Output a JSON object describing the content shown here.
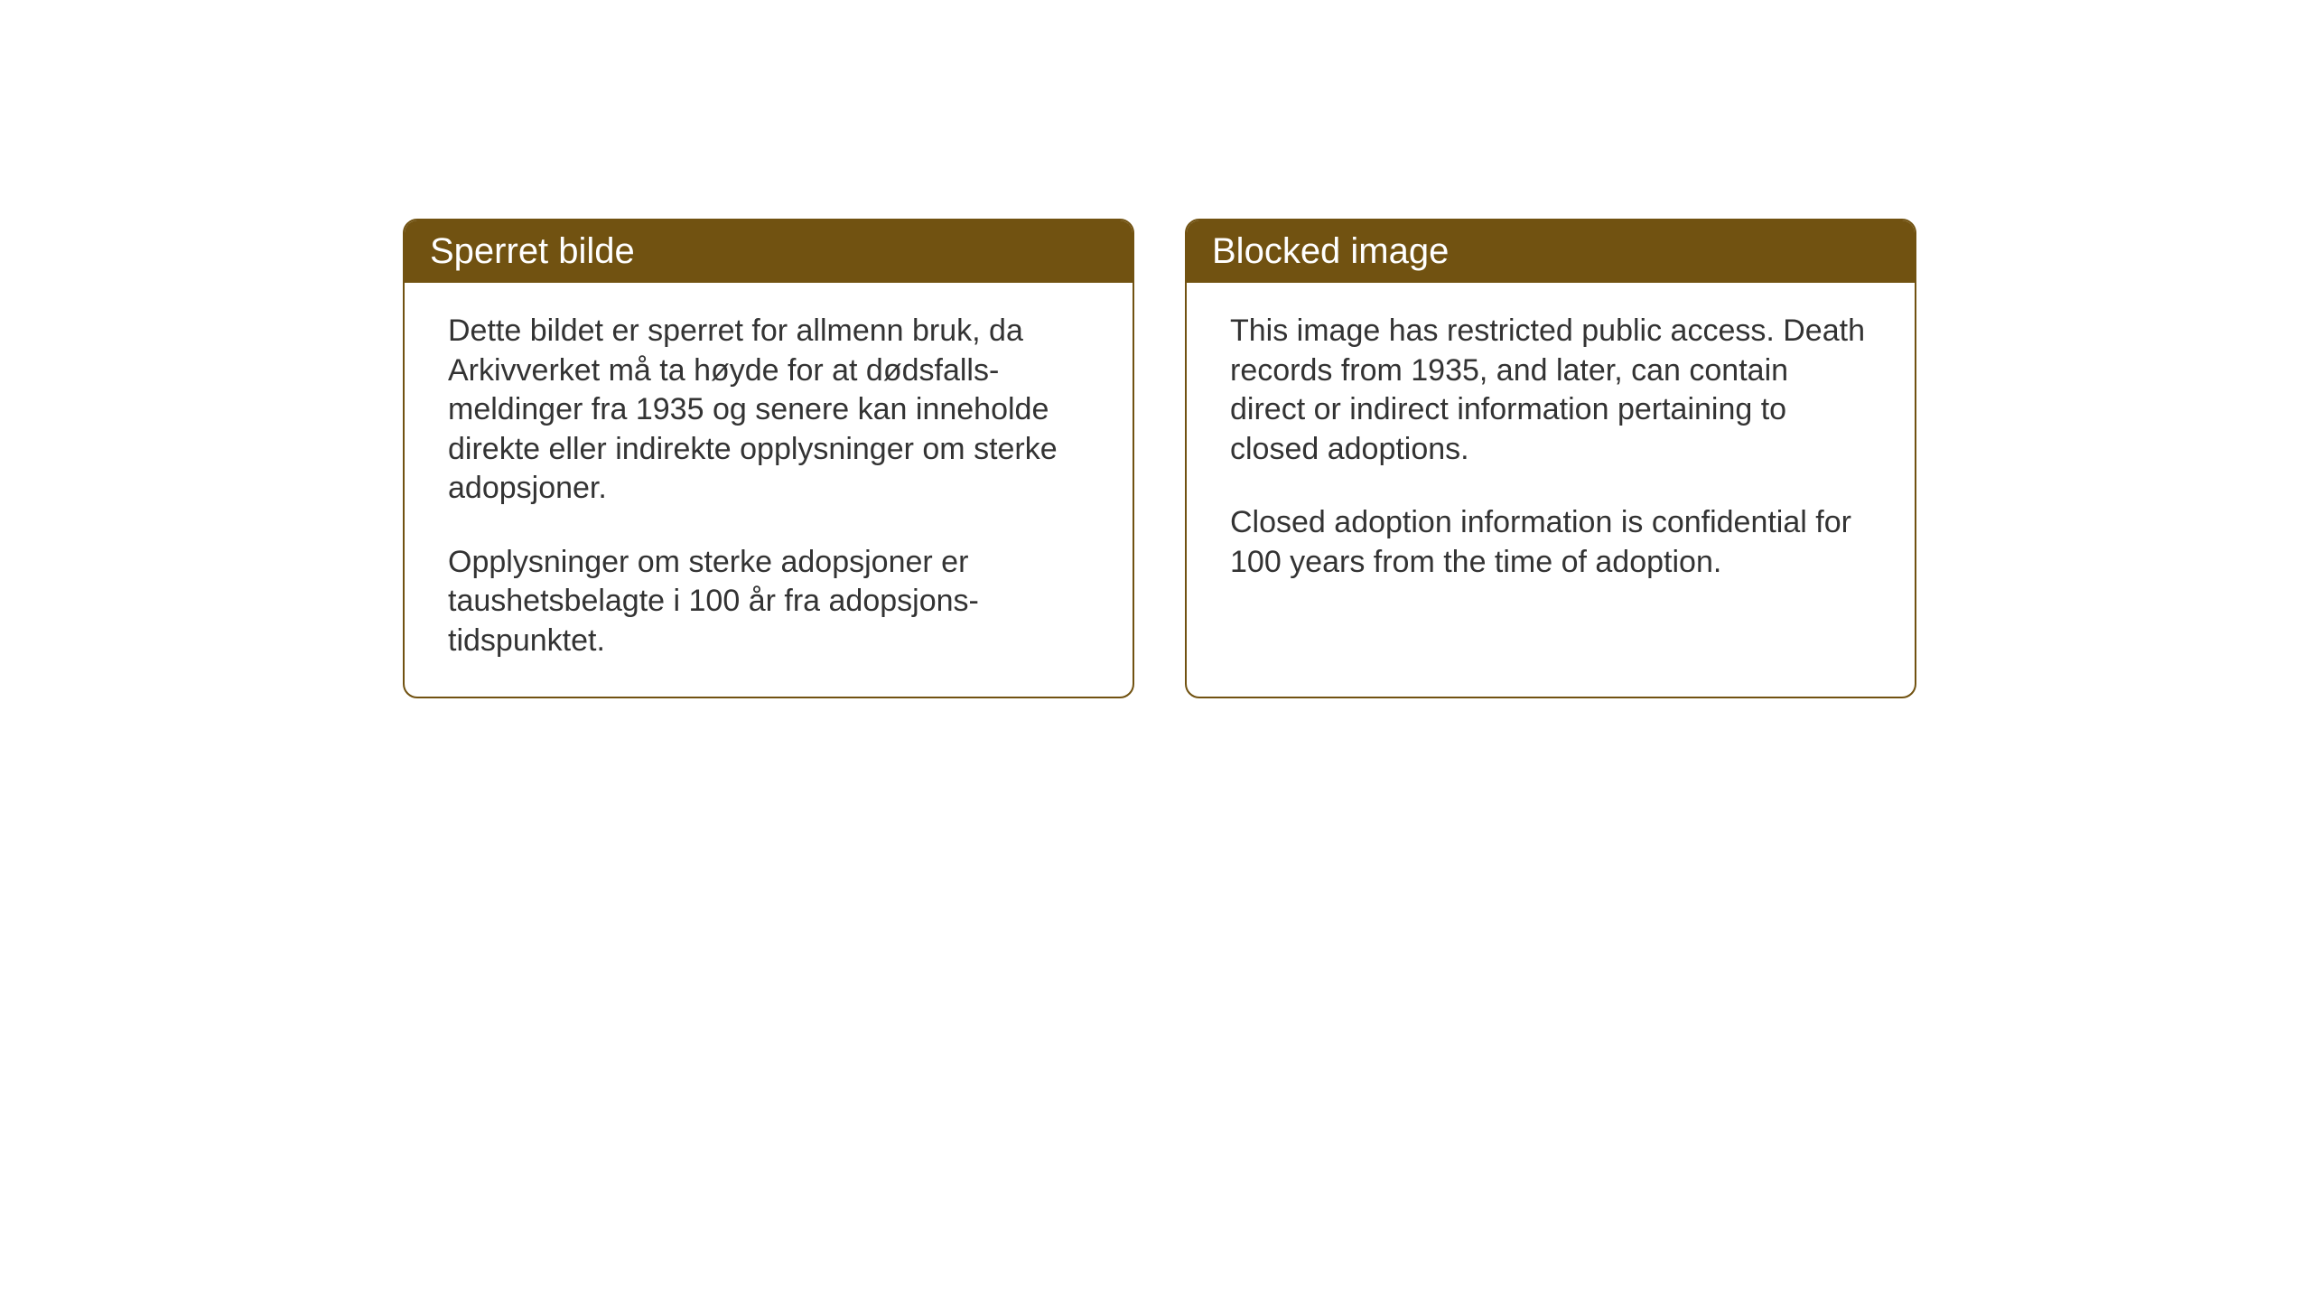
{
  "layout": {
    "background_color": "#ffffff",
    "card_border_color": "#715211",
    "card_border_radius": 16,
    "header_background_color": "#715211",
    "header_text_color": "#ffffff",
    "body_text_color": "#333333",
    "header_fontsize": 40,
    "body_fontsize": 34
  },
  "cards": [
    {
      "lang": "no",
      "title": "Sperret bilde",
      "paragraphs": [
        "Dette bildet er sperret for allmenn bruk, da Arkivverket må ta høyde for at dødsfalls-meldinger fra 1935 og senere kan inneholde direkte eller indirekte opplysninger om sterke adopsjoner.",
        "Opplysninger om sterke adopsjoner er taushetsbelagte i 100 år fra adopsjons-tidspunktet."
      ]
    },
    {
      "lang": "en",
      "title": "Blocked image",
      "paragraphs": [
        "This image has restricted public access. Death records from 1935, and later, can contain direct or indirect information pertaining to closed adoptions.",
        "Closed adoption information is confidential for 100 years from the time of adoption."
      ]
    }
  ]
}
